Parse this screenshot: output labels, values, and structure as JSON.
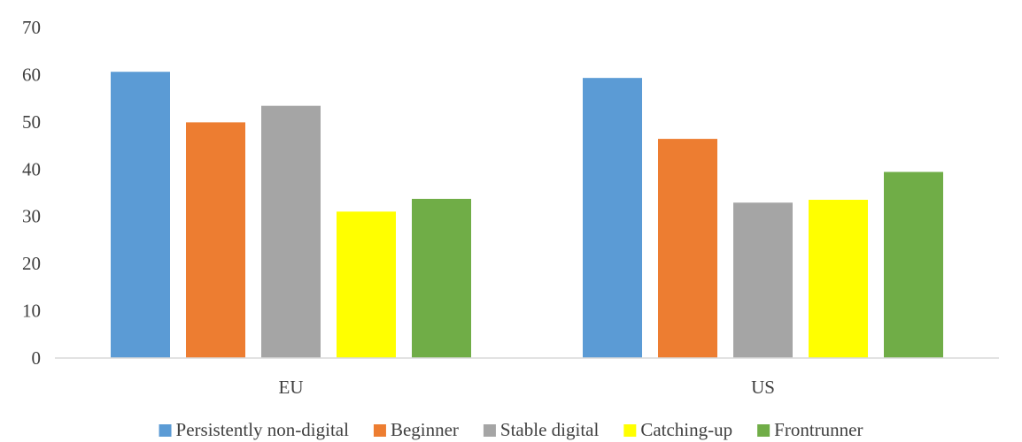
{
  "chart_data": {
    "type": "bar",
    "title": "",
    "xlabel": "",
    "ylabel": "",
    "ylim": [
      0,
      70
    ],
    "ytick_step": 10,
    "yticks": [
      "0",
      "10",
      "20",
      "30",
      "40",
      "50",
      "60",
      "70"
    ],
    "grid": false,
    "legend_position": "bottom",
    "categories": [
      "EU",
      "US"
    ],
    "series": [
      {
        "name": "Persistently non-digital",
        "color": "#5B9BD5",
        "values": [
          60.6,
          59.3
        ]
      },
      {
        "name": "Beginner",
        "color": "#ED7D31",
        "values": [
          49.9,
          46.4
        ]
      },
      {
        "name": "Stable digital",
        "color": "#A5A5A5",
        "values": [
          53.4,
          32.9
        ]
      },
      {
        "name": "Catching-up",
        "color": "#FFFF00",
        "values": [
          31.0,
          33.5
        ]
      },
      {
        "name": "Frontrunner",
        "color": "#70AD47",
        "values": [
          33.7,
          39.4
        ]
      }
    ]
  }
}
